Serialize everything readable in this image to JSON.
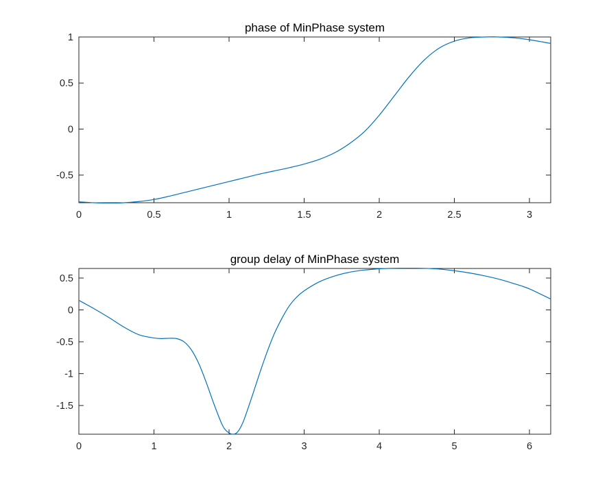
{
  "figure": {
    "background": "#ffffff",
    "axis_color": "#262626",
    "line_color": "#0072BD"
  },
  "chart_data": [
    {
      "type": "line",
      "title": "phase of MinPhase system",
      "xlabel": "",
      "ylabel": "",
      "xlim": [
        0,
        3.1416
      ],
      "ylim": [
        -0.8,
        1.0
      ],
      "grid": false,
      "box": true,
      "xticks": [
        0,
        0.5,
        1,
        1.5,
        2,
        2.5,
        3
      ],
      "xtick_labels": [
        "0",
        "0.5",
        "1",
        "1.5",
        "2",
        "2.5",
        "3"
      ],
      "yticks": [
        -0.5,
        0,
        0.5,
        1
      ],
      "ytick_labels": [
        "-0.5",
        "0",
        "0.5",
        "1"
      ],
      "series": [
        {
          "x": [
            0,
            0.1,
            0.2,
            0.25,
            0.3,
            0.4,
            0.5,
            0.6,
            0.7,
            0.8,
            0.9,
            1.0,
            1.1,
            1.2,
            1.3,
            1.4,
            1.5,
            1.6,
            1.7,
            1.8,
            1.9,
            2.0,
            2.1,
            2.2,
            2.3,
            2.4,
            2.5,
            2.6,
            2.7,
            2.76,
            2.8,
            2.9,
            3.0,
            3.1416
          ],
          "y": [
            -0.79,
            -0.8,
            -0.805,
            -0.805,
            -0.8,
            -0.787,
            -0.765,
            -0.73,
            -0.69,
            -0.65,
            -0.61,
            -0.57,
            -0.53,
            -0.49,
            -0.455,
            -0.42,
            -0.38,
            -0.33,
            -0.26,
            -0.16,
            -0.03,
            0.15,
            0.36,
            0.57,
            0.75,
            0.88,
            0.955,
            0.99,
            1.0,
            1.002,
            1.0,
            0.99,
            0.97,
            0.93
          ]
        }
      ]
    },
    {
      "type": "line",
      "title": "group delay of MinPhase system",
      "xlabel": "",
      "ylabel": "",
      "xlim": [
        0,
        6.2832
      ],
      "ylim": [
        -1.95,
        0.65
      ],
      "grid": false,
      "box": true,
      "xticks": [
        0,
        1,
        2,
        3,
        4,
        5,
        6
      ],
      "xtick_labels": [
        "0",
        "1",
        "2",
        "3",
        "4",
        "5",
        "6"
      ],
      "yticks": [
        -1.5,
        -1,
        -0.5,
        0,
        0.5
      ],
      "ytick_labels": [
        "-1.5",
        "-1",
        "-0.5",
        "0",
        "0.5"
      ],
      "series": [
        {
          "x": [
            0,
            0.2,
            0.4,
            0.6,
            0.8,
            1.0,
            1.1,
            1.2,
            1.3,
            1.4,
            1.5,
            1.6,
            1.7,
            1.8,
            1.9,
            1.95,
            2.0,
            2.05,
            2.1,
            2.15,
            2.2,
            2.3,
            2.4,
            2.5,
            2.6,
            2.7,
            2.8,
            2.9,
            3.0,
            3.2,
            3.4,
            3.6,
            3.8,
            4.0,
            4.2,
            4.4,
            4.6,
            4.8,
            5.0,
            5.2,
            5.4,
            5.6,
            5.8,
            6.0,
            6.2832
          ],
          "y": [
            0.15,
            0.02,
            -0.12,
            -0.27,
            -0.39,
            -0.44,
            -0.45,
            -0.445,
            -0.45,
            -0.5,
            -0.63,
            -0.85,
            -1.15,
            -1.48,
            -1.78,
            -1.88,
            -1.93,
            -1.95,
            -1.93,
            -1.85,
            -1.72,
            -1.38,
            -1.02,
            -0.68,
            -0.38,
            -0.14,
            0.06,
            0.2,
            0.3,
            0.44,
            0.53,
            0.59,
            0.625,
            0.645,
            0.653,
            0.655,
            0.652,
            0.64,
            0.615,
            0.58,
            0.535,
            0.48,
            0.41,
            0.33,
            0.17
          ]
        }
      ]
    }
  ]
}
